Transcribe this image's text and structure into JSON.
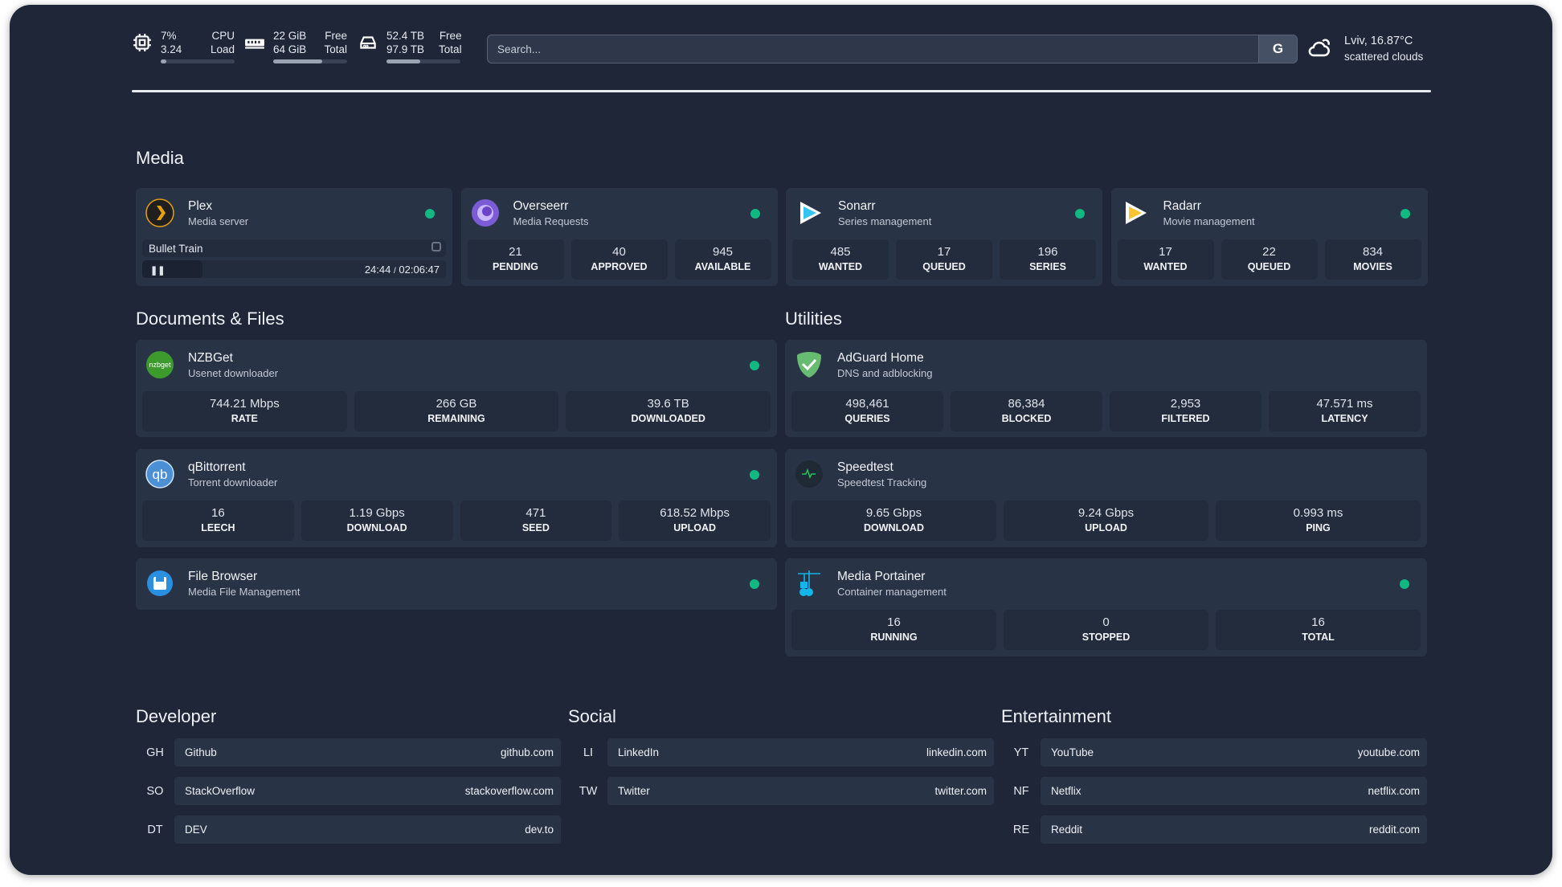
{
  "resources": {
    "cpu": {
      "icon": "cpu-icon",
      "value1": "7%",
      "value2": "3.24",
      "label1": "CPU",
      "label2": "Load",
      "percent": 7
    },
    "memory": {
      "icon": "memory-icon",
      "value1": "22 GiB",
      "value2": "64 GiB",
      "label1": "Free",
      "label2": "Total",
      "percent": 66
    },
    "disk": {
      "icon": "disk-icon",
      "value1": "52.4 TB",
      "value2": "97.9 TB",
      "label1": "Free",
      "label2": "Total",
      "percent": 46
    }
  },
  "search": {
    "placeholder": "Search...",
    "provider": "G"
  },
  "weather": {
    "icon": "cloud-icon",
    "location": "Lviv, 16.87°C",
    "condition": "scattered clouds"
  },
  "colors": {
    "background": "#1e2638",
    "card": "#293346",
    "stat": "#232c3d",
    "status_ok": "#10b981"
  },
  "sections": {
    "media": "Media",
    "documents": "Documents & Files",
    "utilities": "Utilities",
    "developer": "Developer",
    "social": "Social",
    "entertainment": "Entertainment"
  },
  "plex": {
    "title": "Plex",
    "subtitle": "Media server",
    "icon": "plex-icon",
    "now_playing": "Bullet Train",
    "position": "24:44",
    "duration": "02:06:47",
    "separator": "/"
  },
  "media": [
    {
      "title": "Overseerr",
      "subtitle": "Media Requests",
      "icon": "overseerr-icon",
      "stats": [
        {
          "value": "21",
          "label": "PENDING"
        },
        {
          "value": "40",
          "label": "APPROVED"
        },
        {
          "value": "945",
          "label": "AVAILABLE"
        }
      ]
    },
    {
      "title": "Sonarr",
      "subtitle": "Series management",
      "icon": "sonarr-icon",
      "stats": [
        {
          "value": "485",
          "label": "WANTED"
        },
        {
          "value": "17",
          "label": "QUEUED"
        },
        {
          "value": "196",
          "label": "SERIES"
        }
      ]
    },
    {
      "title": "Radarr",
      "subtitle": "Movie management",
      "icon": "radarr-icon",
      "stats": [
        {
          "value": "17",
          "label": "WANTED"
        },
        {
          "value": "22",
          "label": "QUEUED"
        },
        {
          "value": "834",
          "label": "MOVIES"
        }
      ]
    }
  ],
  "documents": [
    {
      "title": "NZBGet",
      "subtitle": "Usenet downloader",
      "icon": "nzbget-icon",
      "stats": [
        {
          "value": "744.21 Mbps",
          "label": "RATE"
        },
        {
          "value": "266 GB",
          "label": "REMAINING"
        },
        {
          "value": "39.6 TB",
          "label": "DOWNLOADED"
        }
      ]
    },
    {
      "title": "qBittorrent",
      "subtitle": "Torrent downloader",
      "icon": "qbittorrent-icon",
      "stats": [
        {
          "value": "16",
          "label": "LEECH"
        },
        {
          "value": "1.19 Gbps",
          "label": "DOWNLOAD"
        },
        {
          "value": "471",
          "label": "SEED"
        },
        {
          "value": "618.52 Mbps",
          "label": "UPLOAD"
        }
      ]
    },
    {
      "title": "File Browser",
      "subtitle": "Media File Management",
      "icon": "file-browser-icon",
      "stats": []
    }
  ],
  "utilities": [
    {
      "title": "AdGuard Home",
      "subtitle": "DNS and adblocking",
      "icon": "adguard-icon",
      "nodot": true,
      "stats": [
        {
          "value": "498,461",
          "label": "QUERIES"
        },
        {
          "value": "86,384",
          "label": "BLOCKED"
        },
        {
          "value": "2,953",
          "label": "FILTERED"
        },
        {
          "value": "47.571 ms",
          "label": "LATENCY"
        }
      ]
    },
    {
      "title": "Speedtest",
      "subtitle": "Speedtest Tracking",
      "icon": "speedtest-icon",
      "nodot": true,
      "stats": [
        {
          "value": "9.65 Gbps",
          "label": "DOWNLOAD"
        },
        {
          "value": "9.24 Gbps",
          "label": "UPLOAD"
        },
        {
          "value": "0.993 ms",
          "label": "PING"
        }
      ]
    },
    {
      "title": "Media Portainer",
      "subtitle": "Container management",
      "icon": "portainer-icon",
      "stats": [
        {
          "value": "16",
          "label": "RUNNING"
        },
        {
          "value": "0",
          "label": "STOPPED"
        },
        {
          "value": "16",
          "label": "TOTAL"
        }
      ]
    }
  ],
  "bookmarks": {
    "developer": [
      {
        "abbr": "GH",
        "name": "Github",
        "url": "github.com"
      },
      {
        "abbr": "SO",
        "name": "StackOverflow",
        "url": "stackoverflow.com"
      },
      {
        "abbr": "DT",
        "name": "DEV",
        "url": "dev.to"
      }
    ],
    "social": [
      {
        "abbr": "LI",
        "name": "LinkedIn",
        "url": "linkedin.com"
      },
      {
        "abbr": "TW",
        "name": "Twitter",
        "url": "twitter.com"
      }
    ],
    "entertainment": [
      {
        "abbr": "YT",
        "name": "YouTube",
        "url": "youtube.com"
      },
      {
        "abbr": "NF",
        "name": "Netflix",
        "url": "netflix.com"
      },
      {
        "abbr": "RE",
        "name": "Reddit",
        "url": "reddit.com"
      }
    ]
  }
}
